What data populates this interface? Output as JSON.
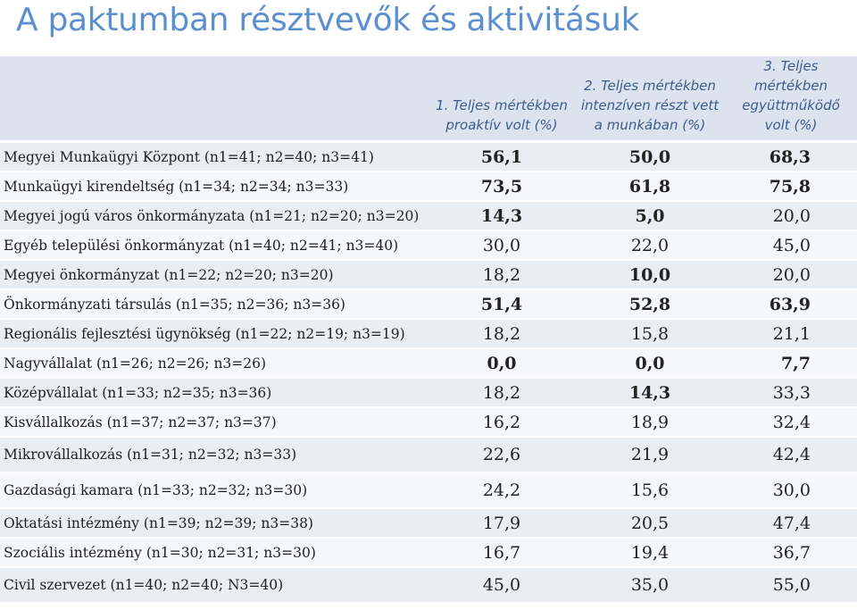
{
  "title": "A paktumban résztvevők és aktivitásuk",
  "headers": [
    "",
    "1. Teljes mértékben proaktív volt (%)",
    "2. Teljes mértékben intenzíven részt vett a munkában (%)",
    "3. Teljes mértékben együttműködő volt (%)"
  ],
  "colors": {
    "title": "#5b8fcf",
    "green": "#8ab652",
    "red": "#cc0000",
    "header_bg": "#dce3ef"
  },
  "rows": [
    {
      "label": "Megyei Munkaügyi Központ (n1=41; n2=40; n3=41)",
      "values": [
        "56,1",
        "50,0",
        "68,3"
      ],
      "styles": [
        "green",
        "green",
        "green"
      ]
    },
    {
      "label": "Munkaügyi kirendeltség (n1=34; n2=34; n3=33)",
      "values": [
        "73,5",
        "61,8",
        "75,8"
      ],
      "styles": [
        "green",
        "green",
        "green"
      ]
    },
    {
      "label": "Megyei jogú város önkormányzata (n1=21; n2=20; n3=20)",
      "values": [
        "14,3",
        "5,0",
        "20,0"
      ],
      "styles": [
        "red",
        "red",
        ""
      ]
    },
    {
      "label": "Egyéb települési önkormányzat (n1=40; n2=41; n3=40)",
      "values": [
        "30,0",
        "22,0",
        "45,0"
      ],
      "styles": [
        "",
        "",
        ""
      ]
    },
    {
      "label": "Megyei önkormányzat (n1=22; n2=20; n3=20)",
      "values": [
        "18,2",
        "10,0",
        "20,0"
      ],
      "styles": [
        "",
        "red",
        ""
      ]
    },
    {
      "label": "Önkormányzati társulás (n1=35; n2=36; n3=36)",
      "values": [
        "51,4",
        "52,8",
        "63,9"
      ],
      "styles": [
        "green",
        "green",
        "green"
      ]
    },
    {
      "label": "Regionális fejlesztési ügynökség (n1=22; n2=19; n3=19)",
      "values": [
        "18,2",
        "15,8",
        "21,1"
      ],
      "styles": [
        "",
        "",
        ""
      ]
    },
    {
      "label": "Nagyvállalat (n1=26; n2=26; n3=26)",
      "values": [
        "0,0",
        "0,0",
        "7,7"
      ],
      "styles": [
        "red",
        "red",
        "red"
      ]
    },
    {
      "label": "Középvállalat (n1=33; n2=35; n3=36)",
      "values": [
        "18,2",
        "14,3",
        "33,3"
      ],
      "styles": [
        "",
        "red",
        ""
      ]
    },
    {
      "label": "Kisvállalkozás (n1=37; n2=37; n3=37)",
      "values": [
        "16,2",
        "18,9",
        "32,4"
      ],
      "styles": [
        "",
        "",
        ""
      ]
    },
    {
      "label": "Mikrovállalkozás (n1=31; n2=32; n3=33)",
      "values": [
        "22,6",
        "21,9",
        "42,4"
      ],
      "styles": [
        "",
        "",
        ""
      ]
    },
    {
      "label": "Gazdasági kamara (n1=33; n2=32; n3=30)",
      "values": [
        "24,2",
        "15,6",
        "30,0"
      ],
      "styles": [
        "",
        "",
        ""
      ]
    },
    {
      "label": "Oktatási intézmény (n1=39; n2=39; n3=38)",
      "values": [
        "17,9",
        "20,5",
        "47,4"
      ],
      "styles": [
        "",
        "",
        ""
      ]
    },
    {
      "label": "Szociális intézmény (n1=30; n2=31; n3=30)",
      "values": [
        "16,7",
        "19,4",
        "36,7"
      ],
      "styles": [
        "",
        "",
        ""
      ]
    },
    {
      "label": "Civil szervezet (n1=40; n2=40; N3=40)",
      "values": [
        "45,0",
        "35,0",
        "55,0"
      ],
      "styles": [
        "",
        "",
        ""
      ]
    }
  ]
}
